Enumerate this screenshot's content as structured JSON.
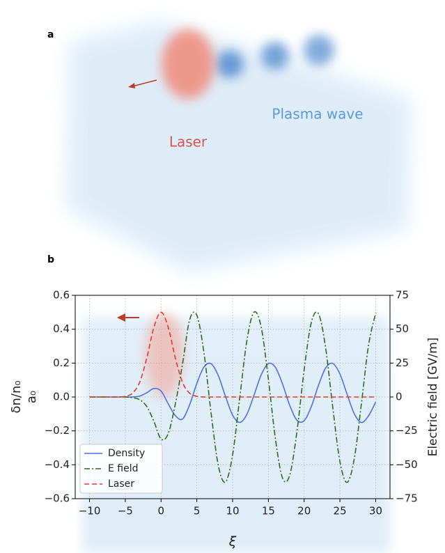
{
  "panel_a": {
    "label": "a",
    "annotations": [
      "Laser",
      "Plasma wave"
    ]
  },
  "chart_data": {
    "type": "line",
    "panel_label": "b",
    "xlabel": "ξ",
    "ylabel": [
      "δn/n₀",
      "a₀"
    ],
    "y2label": "Electric field [GV/m]",
    "x": [
      -10,
      -9,
      -8,
      -7,
      -6,
      -5,
      -4,
      -3,
      -2,
      -1,
      0,
      1,
      2,
      3,
      4,
      5,
      6,
      7,
      8,
      9,
      10,
      11,
      12,
      13,
      14,
      15,
      16,
      17,
      18,
      19,
      20,
      21,
      22,
      23,
      24,
      25,
      26,
      27,
      28,
      29,
      30
    ],
    "series": [
      {
        "name": "Density",
        "color": "#4f6fe3",
        "linestyle": "solid",
        "values": [
          0,
          0,
          0,
          0,
          0,
          0,
          0,
          0.005,
          0.025,
          0.05,
          0.035,
          -0.04,
          -0.11,
          -0.13,
          -0.045,
          0.08,
          0.177,
          0.196,
          0.126,
          0.004,
          -0.107,
          -0.15,
          -0.102,
          0.011,
          0.131,
          0.197,
          0.174,
          0.074,
          -0.051,
          -0.137,
          -0.14,
          -0.057,
          0.068,
          0.171,
          0.198,
          0.136,
          0.017,
          -0.098,
          -0.15,
          -0.111,
          -0.03
        ]
      },
      {
        "name": "E field",
        "color": "#2e6b1a",
        "linestyle": "dashdot",
        "axis": "y2",
        "values": [
          0,
          0,
          0,
          0,
          0,
          0,
          -0.5,
          -2,
          -7,
          -18,
          -31,
          -27,
          -5,
          24.3,
          57,
          60.3,
          32.5,
          -12.1,
          -50.5,
          -62.7,
          -42.7,
          -0.6,
          41.7,
          62.6,
          51.4,
          13.2,
          -31.5,
          -60.1,
          -57.4,
          -25.2,
          19.9,
          54.9,
          61.5,
          36.4,
          -7.6,
          -47.6,
          -63,
          -45.8,
          -5.2,
          38.1,
          61.9
        ]
      },
      {
        "name": "Laser",
        "color": "#e8372c",
        "linestyle": "dashed",
        "values": [
          0,
          0,
          0,
          0,
          0,
          0.004,
          0.022,
          0.086,
          0.229,
          0.411,
          0.5,
          0.411,
          0.229,
          0.086,
          0.022,
          0.004,
          0,
          0,
          0,
          0,
          0,
          0,
          0,
          0,
          0,
          0,
          0,
          0,
          0,
          0,
          0,
          0,
          0,
          0,
          0,
          0,
          0,
          0,
          0,
          0,
          0
        ]
      }
    ],
    "xlim": [
      -12,
      32
    ],
    "xticks": [
      {
        "value": -10,
        "label": "−10"
      },
      {
        "value": -5,
        "label": "−5"
      },
      0,
      5,
      10,
      15,
      20,
      25,
      30
    ],
    "ylim": [
      -0.6,
      0.6
    ],
    "yticks": [
      {
        "value": -0.6,
        "label": "−0.6"
      },
      {
        "value": -0.4,
        "label": "−0.4"
      },
      {
        "value": -0.2,
        "label": "−0.2"
      },
      {
        "value": 0,
        "label": "0.0"
      },
      0.2,
      0.4,
      0.6
    ],
    "y2lim": [
      -75,
      75
    ],
    "y2ticks": [
      {
        "value": -75,
        "label": "−75"
      },
      {
        "value": -50,
        "label": "−50"
      },
      {
        "value": -25,
        "label": "−25"
      },
      0,
      25,
      50,
      75
    ],
    "grid": true,
    "legend": "lower left"
  }
}
